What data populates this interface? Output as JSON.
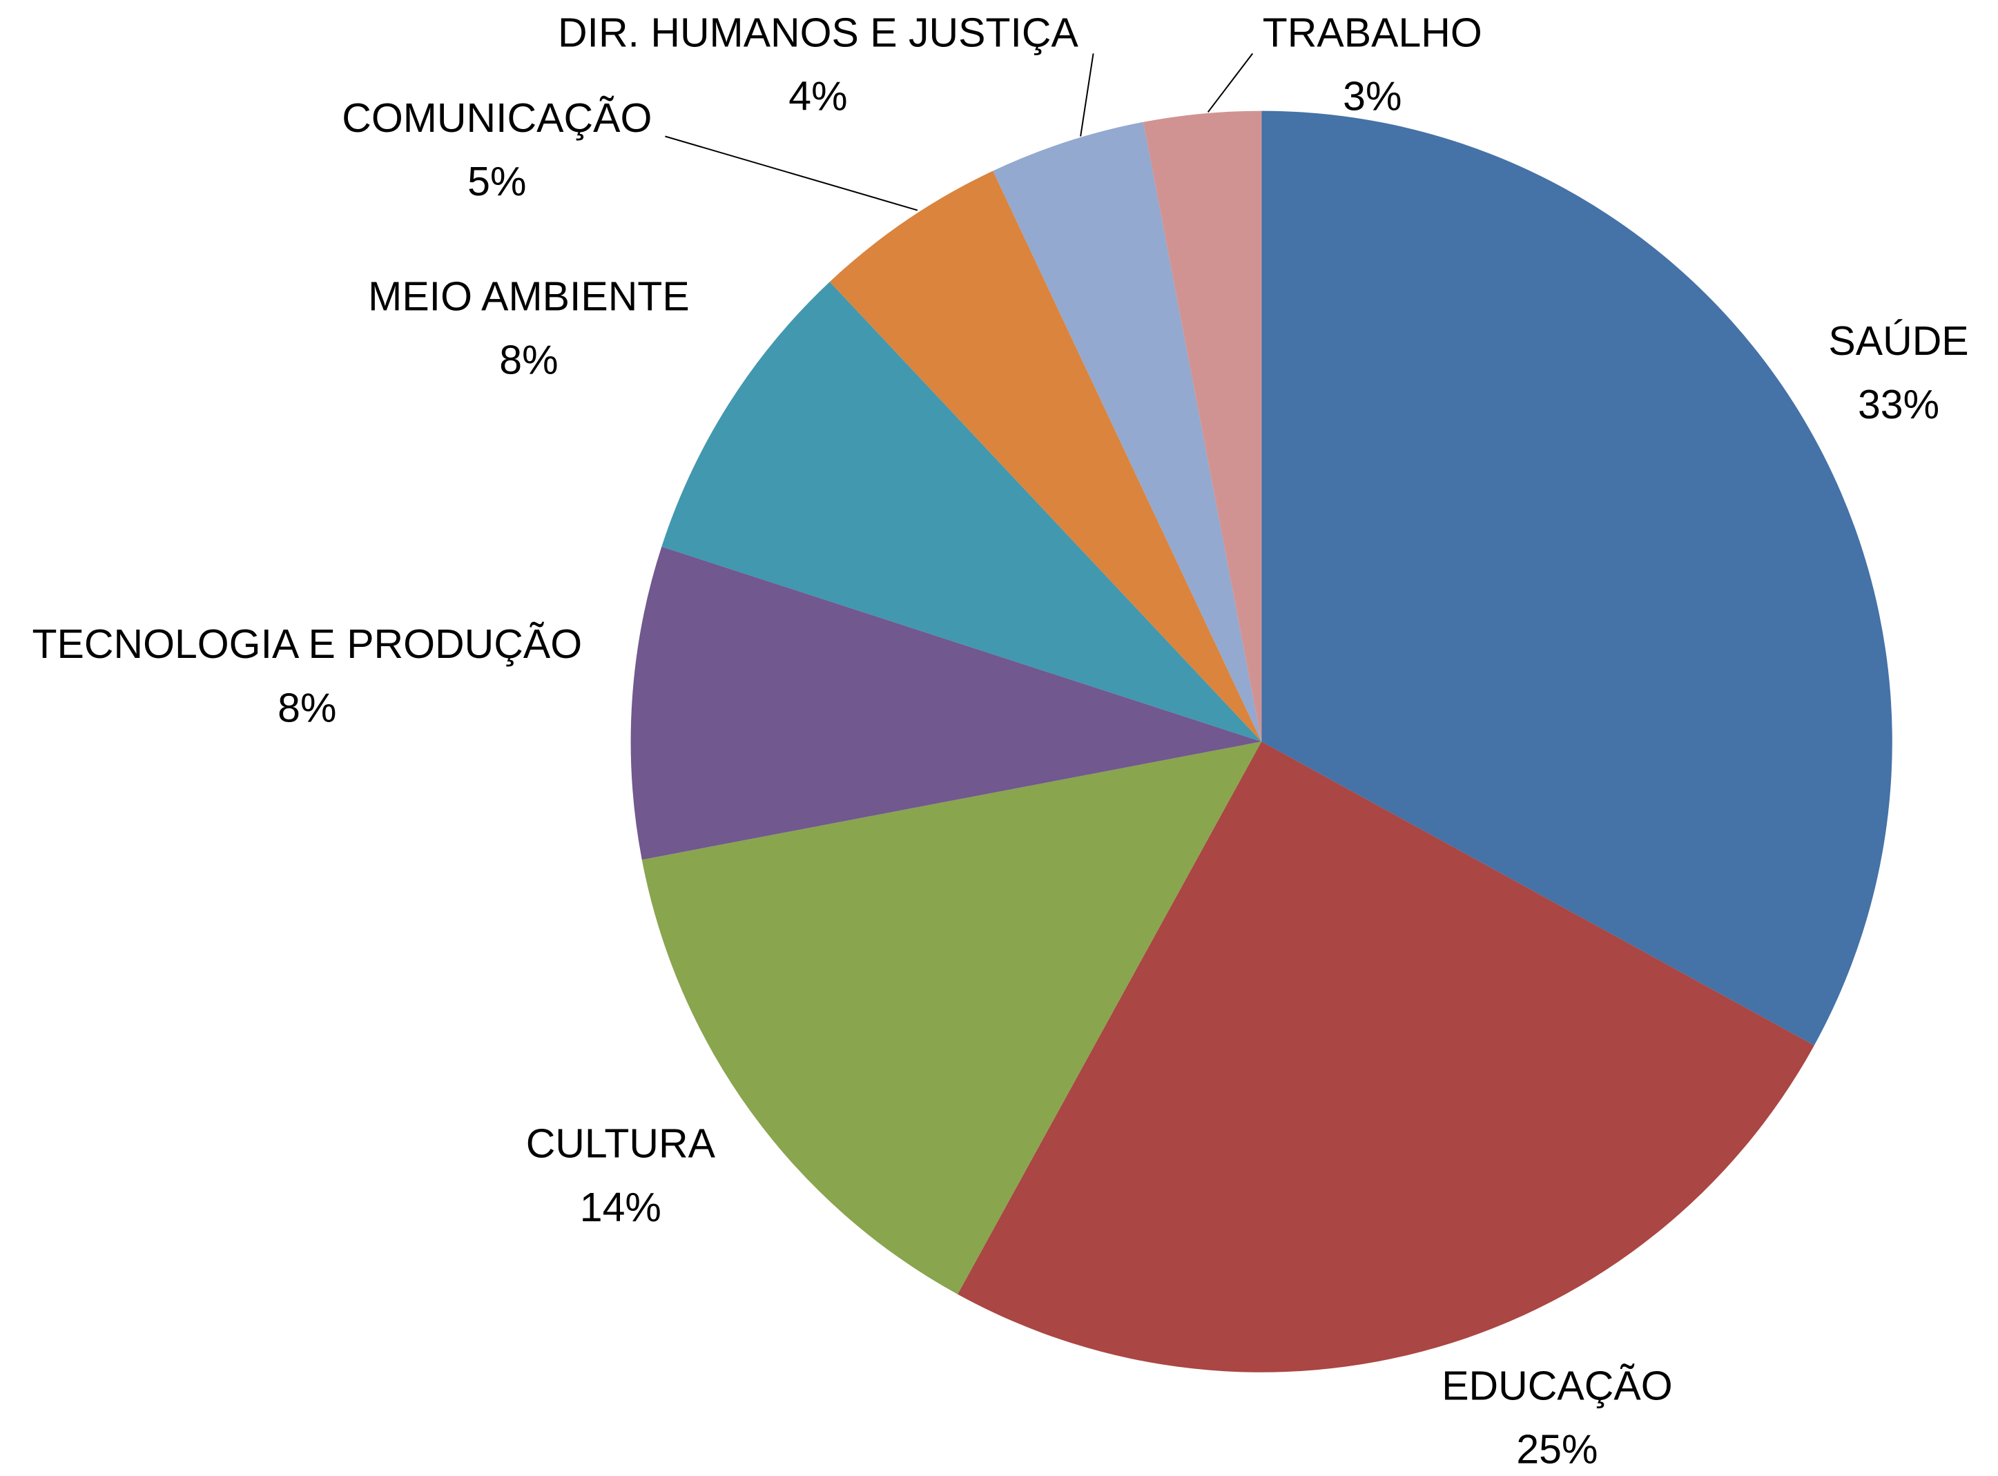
{
  "chart_data": {
    "type": "pie",
    "categories": [
      "SAÚDE",
      "EDUCAÇÃO",
      "CULTURA",
      "TECNOLOGIA E PRODUÇÃO",
      "MEIO AMBIENTE",
      "COMUNICAÇÃO",
      "DIR. HUMANOS E JUSTIÇA",
      "TRABALHO"
    ],
    "values": [
      33,
      25,
      14,
      8,
      8,
      5,
      4,
      3
    ],
    "value_labels": [
      "33%",
      "25%",
      "14%",
      "8%",
      "8%",
      "5%",
      "4%",
      "3%"
    ],
    "colors": [
      "#4572a7",
      "#aa4643",
      "#89a54e",
      "#71588f",
      "#4198af",
      "#db843d",
      "#93a9cf",
      "#d19392"
    ]
  }
}
